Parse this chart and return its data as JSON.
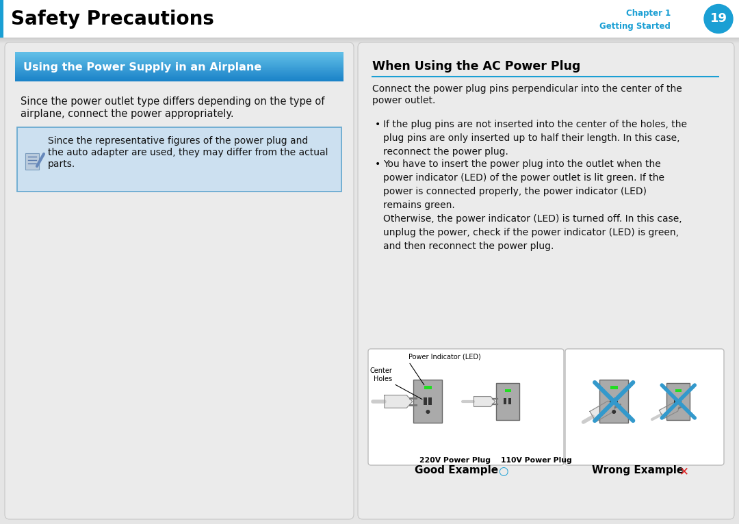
{
  "page_bg": "#e5e5e5",
  "header_title": "Safety Precautions",
  "header_chapter": "Chapter 1",
  "header_getting_started": "Getting Started",
  "header_page_num": "19",
  "accent_blue": "#1a9fd4",
  "left_section_title": "Using the Power Supply in an Airplane",
  "left_body_line1": "Since the power outlet type differs depending on the type of",
  "left_body_line2": "airplane, connect the power appropriately.",
  "left_note_line1": "Since the representative figures of the power plug and",
  "left_note_line2": "the auto adapter are used, they may differ from the actual",
  "left_note_line3": "parts.",
  "note_bg": "#cce0f0",
  "note_border": "#6aaad0",
  "right_section_title": "When Using the AC Power Plug",
  "right_intro1": "Connect the power plug pins perpendicular into the center of the",
  "right_intro2": "power outlet.",
  "right_b1": "If the plug pins are not inserted into the center of the holes, the\nplug pins are only inserted up to half their length. In this case,\nreconnect the power plug.",
  "right_b2": "You have to insert the power plug into the outlet when the\npower indicator (LED) of the power outlet is lit green. If the\npower is connected properly, the power indicator (LED)\nremains green.\nOtherwise, the power indicator (LED) is turned off. In this case,\nunplug the power, check if the power indicator (LED) is green,\nand then reconnect the power plug.",
  "label_220": "220V Power Plug",
  "label_110": "110V Power Plug",
  "label_pi": "Power Indicator (LED)",
  "label_ch": "Center\nHoles",
  "label_good": "Good Example",
  "label_wrong": "Wrong Example",
  "green_led": "#22dd22",
  "img_box_bg": "#ffffff",
  "img_box_border": "#bbbbbb",
  "outlet_fill": "#b0b0b0",
  "outlet_edge": "#707070",
  "x_blue": "#3399cc"
}
